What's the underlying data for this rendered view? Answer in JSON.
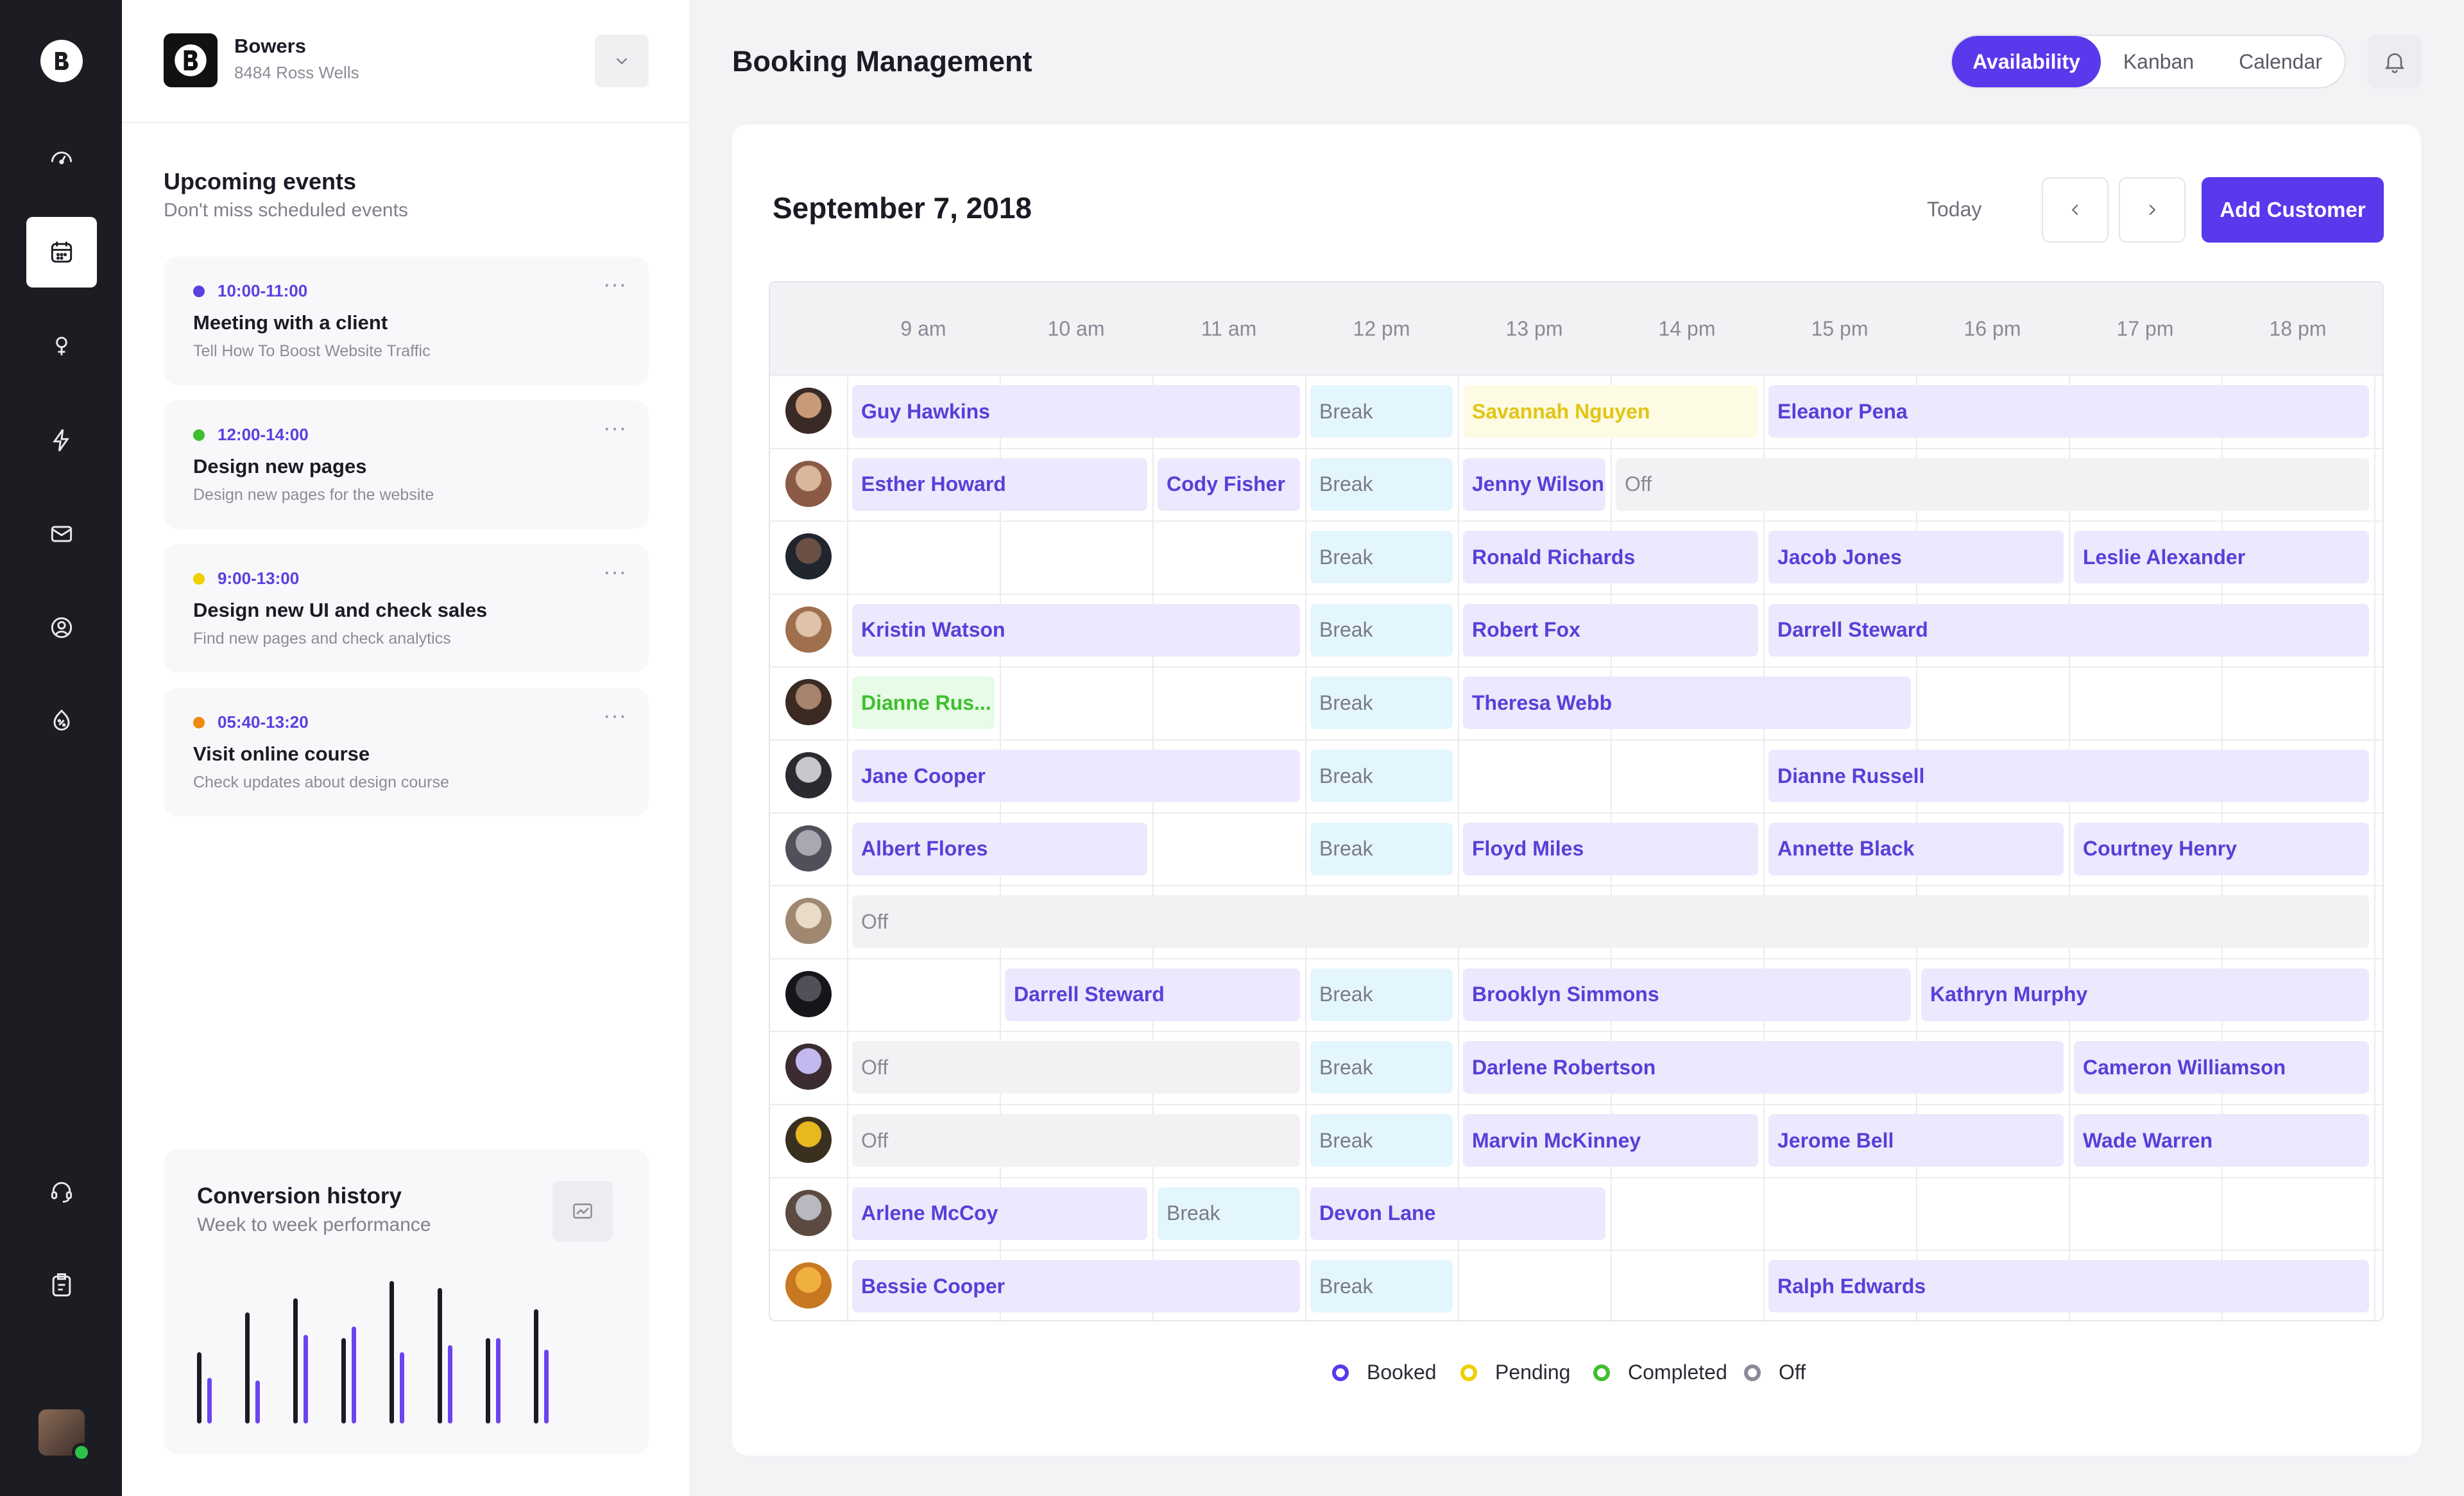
{
  "business": {
    "name": "Bowers",
    "address": "8484 Ross Wells"
  },
  "upcoming": {
    "title": "Upcoming events",
    "subtitle": "Don't miss scheduled events",
    "events": [
      {
        "time": "10:00-11:00",
        "title": "Meeting with a client",
        "desc": "Tell How To Boost Website Traffic",
        "color": "#5b3fe0"
      },
      {
        "time": "12:00-14:00",
        "title": "Design new pages",
        "desc": "Design new pages for the website",
        "color": "#3fbf2e"
      },
      {
        "time": "9:00-13:00",
        "title": "Design new UI and check sales",
        "desc": "Find new pages and check analytics",
        "color": "#f0d000"
      },
      {
        "time": "05:40-13:20",
        "title": "Visit online course",
        "desc": "Check updates about design course",
        "color": "#ee8a12"
      }
    ],
    "more_icon": "···"
  },
  "conversion": {
    "title": "Conversion history",
    "subtitle": "Week to week performance",
    "pairs": [
      [
        0.5,
        0.32
      ],
      [
        0.78,
        0.3
      ],
      [
        0.88,
        0.62
      ],
      [
        0.6,
        0.68
      ],
      [
        1.0,
        0.5
      ],
      [
        0.95,
        0.55
      ],
      [
        0.6,
        0.6
      ],
      [
        0.8,
        0.52
      ]
    ],
    "colors": {
      "primary": "#1b1b26",
      "secondary": "#6a44f0"
    }
  },
  "page": {
    "title": "Booking Management"
  },
  "views": {
    "tabs": [
      "Availability",
      "Kanban",
      "Calendar"
    ],
    "active": "Availability"
  },
  "schedule": {
    "date": "September 7,  2018",
    "today_label": "Today",
    "add_label": "Add Customer",
    "hours": [
      "9 am",
      "10 am",
      "11 am",
      "12 pm",
      "13 pm",
      "14 pm",
      "15 pm",
      "16 pm",
      "17 pm",
      "18 pm"
    ],
    "rows": [
      {
        "avatar": [
          "#c89a78",
          "#3a2a26"
        ],
        "blocks": [
          {
            "label": "Guy Hawkins",
            "status": "booked",
            "start": 0,
            "end": 3
          },
          {
            "label": "Break",
            "status": "break",
            "start": 3,
            "end": 4
          },
          {
            "label": "Savannah Nguyen",
            "status": "pending",
            "start": 4,
            "end": 6
          },
          {
            "label": "Eleanor Pena",
            "status": "booked",
            "start": 6,
            "end": 10
          }
        ]
      },
      {
        "avatar": [
          "#d8b79a",
          "#8a5a44"
        ],
        "blocks": [
          {
            "label": "Esther Howard",
            "status": "booked",
            "start": 0,
            "end": 2
          },
          {
            "label": "Cody Fisher",
            "status": "booked",
            "start": 2,
            "end": 3
          },
          {
            "label": "Break",
            "status": "break",
            "start": 3,
            "end": 4
          },
          {
            "label": "Jenny Wilson",
            "status": "booked",
            "start": 4,
            "end": 5
          },
          {
            "label": "Off",
            "status": "off",
            "start": 5,
            "end": 10
          }
        ]
      },
      {
        "avatar": [
          "#6a5044",
          "#20252e"
        ],
        "blocks": [
          {
            "label": "Break",
            "status": "break",
            "start": 3,
            "end": 4
          },
          {
            "label": "Ronald Richards",
            "status": "booked",
            "start": 4,
            "end": 6
          },
          {
            "label": "Jacob Jones",
            "status": "booked",
            "start": 6,
            "end": 8
          },
          {
            "label": "Leslie Alexander",
            "status": "booked",
            "start": 8,
            "end": 10
          }
        ]
      },
      {
        "avatar": [
          "#e0c2a8",
          "#a0704e"
        ],
        "blocks": [
          {
            "label": "Kristin Watson",
            "status": "booked",
            "start": 0,
            "end": 3
          },
          {
            "label": "Break",
            "status": "break",
            "start": 3,
            "end": 4
          },
          {
            "label": "Robert Fox",
            "status": "booked",
            "start": 4,
            "end": 6
          },
          {
            "label": "Darrell Steward",
            "status": "booked",
            "start": 6,
            "end": 10
          }
        ]
      },
      {
        "avatar": [
          "#a8846c",
          "#3a2a22"
        ],
        "blocks": [
          {
            "label": "Dianne Rus...",
            "status": "completed",
            "start": 0,
            "end": 1
          },
          {
            "label": "Break",
            "status": "break",
            "start": 3,
            "end": 4
          },
          {
            "label": "Theresa Webb",
            "status": "booked",
            "start": 4,
            "end": 7
          }
        ]
      },
      {
        "avatar": [
          "#c8c8cc",
          "#2a2a30"
        ],
        "blocks": [
          {
            "label": "Jane Cooper",
            "status": "booked",
            "start": 0,
            "end": 3
          },
          {
            "label": "Break",
            "status": "break",
            "start": 3,
            "end": 4
          },
          {
            "label": "Dianne Russell",
            "status": "booked",
            "start": 6,
            "end": 10
          }
        ]
      },
      {
        "avatar": [
          "#a8a8b0",
          "#50505a"
        ],
        "blocks": [
          {
            "label": "Albert Flores",
            "status": "booked",
            "start": 0,
            "end": 2
          },
          {
            "label": "Break",
            "status": "break",
            "start": 3,
            "end": 4
          },
          {
            "label": "Floyd Miles",
            "status": "booked",
            "start": 4,
            "end": 6
          },
          {
            "label": "Annette Black",
            "status": "booked",
            "start": 6,
            "end": 8
          },
          {
            "label": "Courtney Henry",
            "status": "booked",
            "start": 8,
            "end": 10
          }
        ]
      },
      {
        "avatar": [
          "#e8dcc8",
          "#a08870"
        ],
        "blocks": [
          {
            "label": "Off",
            "status": "off",
            "start": 0,
            "end": 10
          }
        ]
      },
      {
        "avatar": [
          "#505058",
          "#16161a"
        ],
        "blocks": [
          {
            "label": "Darrell Steward",
            "status": "booked",
            "start": 1,
            "end": 3
          },
          {
            "label": "Break",
            "status": "break",
            "start": 3,
            "end": 4
          },
          {
            "label": "Brooklyn Simmons",
            "status": "booked",
            "start": 4,
            "end": 7
          },
          {
            "label": "Kathryn Murphy",
            "status": "booked",
            "start": 7,
            "end": 10
          }
        ]
      },
      {
        "avatar": [
          "#c4b8f0",
          "#3a2c30"
        ],
        "blocks": [
          {
            "label": "Off",
            "status": "off",
            "start": 0,
            "end": 3
          },
          {
            "label": "Break",
            "status": "break",
            "start": 3,
            "end": 4
          },
          {
            "label": "Darlene Robertson",
            "status": "booked",
            "start": 4,
            "end": 8
          },
          {
            "label": "Cameron Williamson",
            "status": "booked",
            "start": 8,
            "end": 10
          }
        ]
      },
      {
        "avatar": [
          "#e8b820",
          "#3a3020"
        ],
        "blocks": [
          {
            "label": "Off",
            "status": "off",
            "start": 0,
            "end": 3
          },
          {
            "label": "Break",
            "status": "break",
            "start": 3,
            "end": 4
          },
          {
            "label": "Marvin McKinney",
            "status": "booked",
            "start": 4,
            "end": 6
          },
          {
            "label": "Jerome Bell",
            "status": "booked",
            "start": 6,
            "end": 8
          },
          {
            "label": "Wade Warren",
            "status": "booked",
            "start": 8,
            "end": 10
          }
        ]
      },
      {
        "avatar": [
          "#b8b8c0",
          "#5a4a40"
        ],
        "blocks": [
          {
            "label": "Arlene McCoy",
            "status": "booked",
            "start": 0,
            "end": 2
          },
          {
            "label": "Break",
            "status": "break",
            "start": 2,
            "end": 3
          },
          {
            "label": "Devon Lane",
            "status": "booked",
            "start": 3,
            "end": 5
          }
        ]
      },
      {
        "avatar": [
          "#f0b040",
          "#c87820"
        ],
        "blocks": [
          {
            "label": "Bessie Cooper",
            "status": "booked",
            "start": 0,
            "end": 3
          },
          {
            "label": "Break",
            "status": "break",
            "start": 3,
            "end": 4
          },
          {
            "label": "Ralph Edwards",
            "status": "booked",
            "start": 6,
            "end": 10
          }
        ]
      }
    ]
  },
  "legend": [
    {
      "label": "Booked",
      "color": "#5a38ec"
    },
    {
      "label": "Pending",
      "color": "#f0d000"
    },
    {
      "label": "Completed",
      "color": "#3fbf2e"
    },
    {
      "label": "Off",
      "color": "#8a8a9a"
    }
  ],
  "rail_icons": [
    "dashboard-icon",
    "calendar-icon",
    "location-icon",
    "bolt-icon",
    "mail-icon",
    "user-icon",
    "discount-icon",
    "support-icon",
    "clipboard-icon"
  ]
}
